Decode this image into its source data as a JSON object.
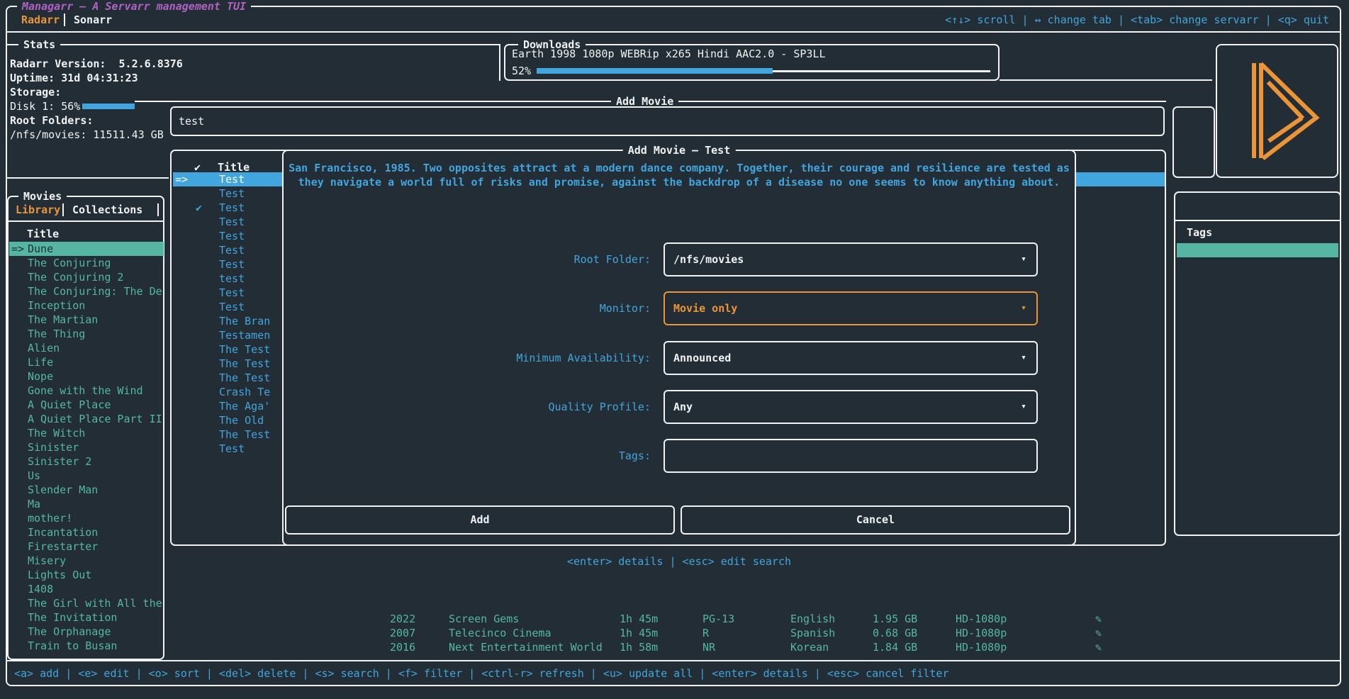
{
  "app": {
    "title": "Managarr — A Servarr management TUI"
  },
  "header": {
    "tabs": [
      {
        "label": "Radarr",
        "active": true
      },
      {
        "label": "Sonarr",
        "active": false
      }
    ],
    "keybinds": "<↑↓> scroll | ↔ change tab | <tab> change servarr | <q> quit"
  },
  "stats": {
    "title": "Stats",
    "lines": [
      {
        "text": "Radarr Version:  5.2.6.8376",
        "bold": true
      },
      {
        "text": "Uptime: 31d 04:31:23",
        "bold": true
      },
      {
        "text": "Storage:",
        "bold": true
      },
      {
        "text": "Disk 1: 56%",
        "bold": false
      },
      {
        "text": "Root Folders:",
        "bold": true
      },
      {
        "text": "/nfs/movies: 11511.43 GB",
        "bold": false
      }
    ],
    "disk_percent": 56
  },
  "downloads": {
    "title": "Downloads",
    "item": "Earth 1998 1080p WEBRip x265 Hindi AAC2.0 - SP3LL",
    "percent_label": "52%",
    "percent": 52
  },
  "add_movie": {
    "panel_title": "Add Movie",
    "search_value": "test"
  },
  "search_results": {
    "check_header": "✔",
    "title_header": "Title",
    "selected_prefix": "=>",
    "rows": [
      {
        "title": "Test",
        "selected": true
      },
      {
        "title": "Test"
      },
      {
        "title": "Test",
        "checked": true
      },
      {
        "title": "Test"
      },
      {
        "title": "Test"
      },
      {
        "title": "Test"
      },
      {
        "title": "Test"
      },
      {
        "title": "test"
      },
      {
        "title": "Test"
      },
      {
        "title": "Test"
      },
      {
        "title": "The Bran"
      },
      {
        "title": "Testamen"
      },
      {
        "title": "The Test"
      },
      {
        "title": "The Test"
      },
      {
        "title": "The Test"
      },
      {
        "title": "Crash Te"
      },
      {
        "title": "The Aga'"
      },
      {
        "title": "The Old"
      },
      {
        "title": "The Test"
      },
      {
        "title": "Test"
      }
    ]
  },
  "modal": {
    "title": "Add Movie — Test",
    "description": [
      "San Francisco, 1985. Two opposites attract at a modern dance company. Together, their courage and resilience are tested as",
      "they navigate a world full of risks and promise, against the backdrop of a disease no one seems to know anything about."
    ],
    "fields": [
      {
        "label": "Root Folder:",
        "value": "/nfs/movies",
        "arrow": "▾",
        "focused": false
      },
      {
        "label": "Monitor:",
        "value": "Movie only",
        "arrow": "▾",
        "focused": true
      },
      {
        "label": "Minimum Availability:",
        "value": "Announced",
        "arrow": "▾",
        "focused": false
      },
      {
        "label": "Quality Profile:",
        "value": "Any",
        "arrow": "▾",
        "focused": false
      },
      {
        "label": "Tags:",
        "value": "",
        "arrow": "",
        "focused": false
      }
    ],
    "buttons": [
      {
        "label": "Add"
      },
      {
        "label": "Cancel"
      }
    ],
    "help": "<enter> details | <esc> edit search"
  },
  "movies": {
    "title": "Movies",
    "tabs": [
      {
        "label": "Library",
        "active": true
      },
      {
        "label": "Collections",
        "active": false
      }
    ],
    "column_header": "Title",
    "selected_prefix": "=>",
    "selected_index": 0,
    "rows": [
      "Dune",
      "The Conjuring",
      "The Conjuring 2",
      "The Conjuring: The De",
      "Inception",
      "The Martian",
      "The Thing",
      "Alien",
      "Life",
      "Nope",
      "Gone with the Wind",
      "A Quiet Place",
      "A Quiet Place Part II",
      "The Witch",
      "Sinister",
      "Sinister 2",
      "Us",
      "Slender Man",
      "Ma",
      "mother!",
      "Incantation",
      "Firestarter",
      "Misery",
      "Lights Out",
      "1408",
      "The Girl with All the",
      "The Invitation",
      "The Orphanage",
      "Train to Busan"
    ]
  },
  "tags_panel": {
    "title": "Tags"
  },
  "library_fragment": {
    "edit_icon": "✎",
    "rows": [
      {
        "year": "2022",
        "studio": "Screen Gems",
        "runtime": "1h 45m",
        "rating": "PG-13",
        "language": "English",
        "size": "1.95 GB",
        "quality": "HD-1080p"
      },
      {
        "year": "2007",
        "studio": "Telecinco Cinema",
        "runtime": "1h 45m",
        "rating": "R",
        "language": "Spanish",
        "size": "0.68 GB",
        "quality": "HD-1080p"
      },
      {
        "year": "2016",
        "studio": "Next Entertainment World",
        "runtime": "1h 58m",
        "rating": "NR",
        "language": "Korean",
        "size": "1.84 GB",
        "quality": "HD-1080p"
      }
    ]
  },
  "footer": {
    "keybinds": "<a> add | <e> edit | <o> sort | <del> delete | <s> search | <f> filter | <ctrl-r> refresh | <u> update all | <enter> details | <esc> cancel filter"
  },
  "icons": {
    "logo": "radarr-play-logo",
    "check": "✔",
    "dropdown": "▾",
    "edit": "✎"
  },
  "colors": {
    "background": "#222d35",
    "foreground": "#f2f2f2",
    "accent_blue": "#42a5dd",
    "accent_teal": "#55b7a3",
    "accent_orange": "#ec9538",
    "title_purple": "#b062c4"
  }
}
